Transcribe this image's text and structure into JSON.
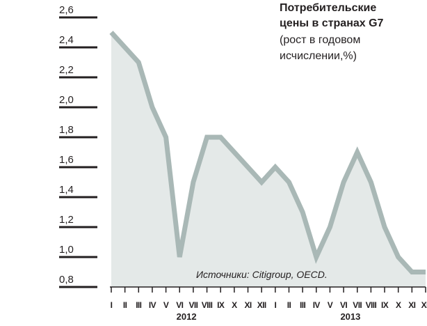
{
  "chart_data": {
    "type": "line",
    "title": "Потребительские цены в странах G7",
    "subtitle": "(рост в годовом исчислении,%)",
    "source": "Источники: Citigroup, OECD.",
    "categories": [
      "I",
      "II",
      "III",
      "IV",
      "V",
      "VI",
      "VII",
      "VIII",
      "IX",
      "X",
      "XI",
      "XII",
      "I",
      "II",
      "III",
      "IV",
      "V",
      "VI",
      "VII",
      "VIII",
      "IX",
      "X",
      "XI",
      "XII"
    ],
    "years": [
      "2012",
      "2013"
    ],
    "values": [
      2.5,
      2.4,
      2.3,
      2.0,
      1.8,
      1.0,
      1.5,
      1.8,
      1.8,
      1.7,
      1.6,
      1.5,
      1.6,
      1.5,
      1.3,
      1.0,
      1.2,
      1.5,
      1.7,
      1.5,
      1.2,
      1.0,
      0.9,
      0.9
    ],
    "color": "#a9b8b6",
    "fill": "#e4e9e8",
    "ylim": [
      0.8,
      2.6
    ],
    "yticks": [
      {
        "value": 0.8,
        "label": "0,8"
      },
      {
        "value": 1.0,
        "label": "1,0"
      },
      {
        "value": 1.2,
        "label": "1,2"
      },
      {
        "value": 1.4,
        "label": "1,4"
      },
      {
        "value": 1.6,
        "label": "1,6"
      },
      {
        "value": 1.8,
        "label": "1,8"
      },
      {
        "value": 2.0,
        "label": "2,0"
      },
      {
        "value": 2.2,
        "label": "2,2"
      },
      {
        "value": 2.4,
        "label": "2,4"
      },
      {
        "value": 2.6,
        "label": "2,6"
      }
    ]
  }
}
